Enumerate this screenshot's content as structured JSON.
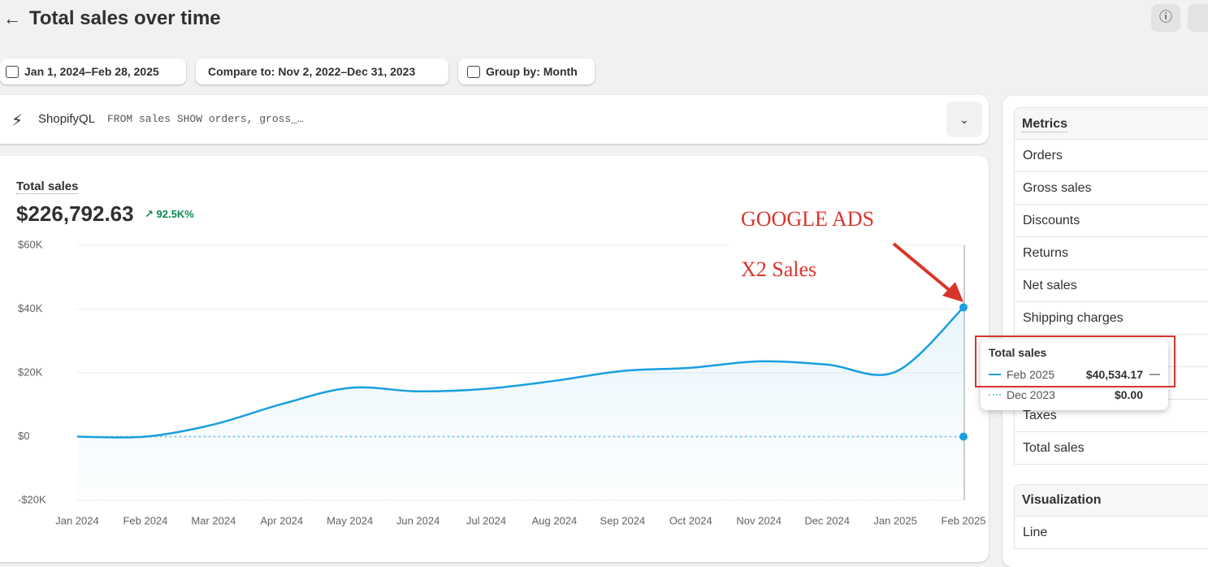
{
  "header": {
    "title": "Total sales over time"
  },
  "filters": [
    "Jan 1, 2024–Feb 28, 2025",
    "Compare to: Nov 2, 2022–Dec 31, 2023",
    "Group by: Month"
  ],
  "query": {
    "label": "ShopifyQL",
    "text": "FROM sales SHOW orders, gross_…"
  },
  "summary": {
    "metric": "Total sales",
    "value": "$226,792.63",
    "change": "92.5K%"
  },
  "chart_data": {
    "type": "line",
    "categories": [
      "Jan 2024",
      "Feb 2024",
      "Mar 2024",
      "Apr 2024",
      "May 2024",
      "Jun 2024",
      "Jul 2024",
      "Aug 2024",
      "Sep 2024",
      "Oct 2024",
      "Nov 2024",
      "Dec 2024",
      "Jan 2025",
      "Feb 2025"
    ],
    "series": [
      {
        "color": "#1a9fe0",
        "values": [
          0,
          0,
          3800,
          10200,
          15300,
          14200,
          15000,
          17500,
          20600,
          21600,
          23600,
          22600,
          20300,
          40534.17
        ]
      },
      {
        "color": "#7fcbe8",
        "style": "dotted",
        "values": [
          0,
          0,
          0,
          0,
          0,
          0,
          0,
          0,
          0,
          0,
          0,
          0,
          0,
          0
        ]
      }
    ],
    "ylim": [
      -20000,
      60000
    ],
    "yticks": [
      {
        "value": -20000,
        "label": "-$20K"
      },
      {
        "value": 0,
        "label": "$0"
      },
      {
        "value": 20000,
        "label": "$20K"
      },
      {
        "value": 40000,
        "label": "$40K"
      },
      {
        "value": 60000,
        "label": "$60K"
      }
    ],
    "grid": true,
    "annotations": [
      "GOOGLE ADS",
      "X2 Sales"
    ]
  },
  "tooltip": {
    "title": "Total sales",
    "rows": [
      {
        "label": "Feb 2025",
        "value": "$40,534.17"
      },
      {
        "label": "Dec 2023",
        "value": "$0.00"
      }
    ]
  },
  "metrics": {
    "title": "Metrics",
    "items": [
      "Orders",
      "Gross sales",
      "Discounts",
      "Returns",
      "Net sales",
      "Shipping charges",
      "Taxes",
      "Total sales"
    ]
  },
  "visualization": {
    "title": "Visualization",
    "value": "Line"
  }
}
